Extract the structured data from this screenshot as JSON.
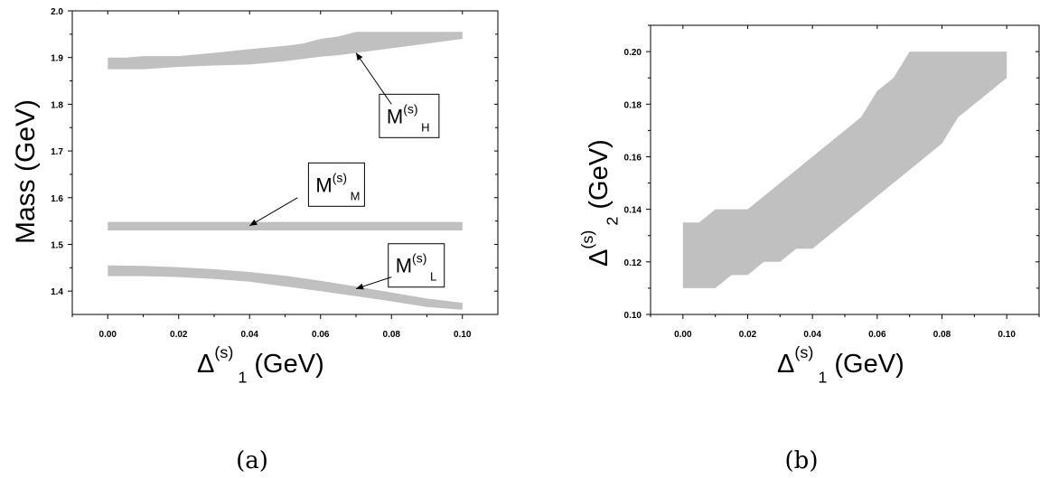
{
  "chart_data": [
    {
      "type": "area",
      "panel": "(a)",
      "caption": "(a)",
      "ylabel": "Mass (GeV)",
      "xlabel": {
        "symbol": "Δ",
        "sup": "(s)",
        "sub": "1",
        "unit": "(GeV)"
      },
      "xlim": [
        -0.01,
        0.11
      ],
      "ylim": [
        1.35,
        2.0
      ],
      "xticks": [
        0.0,
        0.02,
        0.04,
        0.06,
        0.08,
        0.1
      ],
      "xtick_labels": [
        "0.00",
        "0.02",
        "0.04",
        "0.06",
        "0.08",
        "0.10"
      ],
      "yticks": [
        1.4,
        1.5,
        1.6,
        1.7,
        1.8,
        1.9,
        2.0
      ],
      "ytick_labels": [
        "1.4",
        "1.5",
        "1.6",
        "1.7",
        "1.8",
        "1.9",
        "2.0"
      ],
      "series": [
        {
          "key": "H",
          "label": {
            "main": "M",
            "sup": "(s)",
            "sub": "H"
          },
          "x": [
            0.0,
            0.005,
            0.01,
            0.02,
            0.03,
            0.04,
            0.05,
            0.055,
            0.06,
            0.065,
            0.07,
            0.08,
            0.09,
            0.1
          ],
          "upper": [
            1.9,
            1.9,
            1.903,
            1.903,
            1.91,
            1.918,
            1.925,
            1.93,
            1.94,
            1.945,
            1.955,
            1.955,
            1.955,
            1.955
          ],
          "lower": [
            1.875,
            1.875,
            1.875,
            1.88,
            1.883,
            1.885,
            1.892,
            1.897,
            1.902,
            1.905,
            1.91,
            1.92,
            1.93,
            1.94
          ],
          "label_at": [
            0.085,
            1.775
          ],
          "arrow_from": [
            0.08,
            1.8
          ],
          "arrow_to": [
            0.07,
            1.91
          ]
        },
        {
          "key": "M",
          "label": {
            "main": "M",
            "sup": "(s)",
            "sub": "M"
          },
          "x": [
            0.0,
            0.1
          ],
          "upper": [
            1.548,
            1.548
          ],
          "lower": [
            1.53,
            1.53
          ],
          "label_at": [
            0.0645,
            1.628
          ],
          "arrow_from": [
            0.0535,
            1.6
          ],
          "arrow_to": [
            0.04,
            1.54
          ]
        },
        {
          "key": "L",
          "label": {
            "main": "M",
            "sup": "(s)",
            "sub": "L"
          },
          "x": [
            0.0,
            0.01,
            0.02,
            0.03,
            0.04,
            0.05,
            0.06,
            0.07,
            0.08,
            0.09,
            0.1
          ],
          "upper": [
            1.455,
            1.454,
            1.451,
            1.447,
            1.441,
            1.433,
            1.422,
            1.41,
            1.397,
            1.384,
            1.375
          ],
          "lower": [
            1.432,
            1.432,
            1.43,
            1.426,
            1.42,
            1.41,
            1.4,
            1.389,
            1.378,
            1.366,
            1.36
          ],
          "label_at": [
            0.087,
            1.455
          ],
          "arrow_from": [
            0.08,
            1.43
          ],
          "arrow_to": [
            0.07,
            1.405
          ]
        }
      ]
    },
    {
      "type": "area",
      "panel": "(b)",
      "caption": "(b)",
      "ylabel": {
        "symbol": "Δ",
        "sup": "(s)",
        "sub": "2",
        "unit": "(GeV)"
      },
      "xlabel": {
        "symbol": "Δ",
        "sup": "(s)",
        "sub": "1",
        "unit": "(GeV)"
      },
      "xlim": [
        -0.01,
        0.11
      ],
      "ylim": [
        0.1,
        0.21
      ],
      "xticks": [
        0.0,
        0.02,
        0.04,
        0.06,
        0.08,
        0.1
      ],
      "xtick_labels": [
        "0.00",
        "0.02",
        "0.04",
        "0.06",
        "0.08",
        "0.10"
      ],
      "yticks": [
        0.1,
        0.12,
        0.14,
        0.16,
        0.18,
        0.2
      ],
      "ytick_labels": [
        "0.10",
        "0.12",
        "0.14",
        "0.16",
        "0.18",
        "0.20"
      ],
      "region_upper": {
        "x": [
          0.0,
          0.005,
          0.01,
          0.02,
          0.055,
          0.06,
          0.065,
          0.07,
          0.1
        ],
        "y": [
          0.135,
          0.135,
          0.14,
          0.14,
          0.175,
          0.185,
          0.19,
          0.2,
          0.2
        ]
      },
      "region_lower": {
        "x": [
          0.0,
          0.01,
          0.015,
          0.02,
          0.025,
          0.03,
          0.035,
          0.04,
          0.08,
          0.085,
          0.1
        ],
        "y": [
          0.11,
          0.11,
          0.115,
          0.115,
          0.12,
          0.12,
          0.125,
          0.125,
          0.165,
          0.175,
          0.19
        ]
      }
    }
  ],
  "colors": {
    "band": "#c0c0c0",
    "axis": "#000000"
  }
}
